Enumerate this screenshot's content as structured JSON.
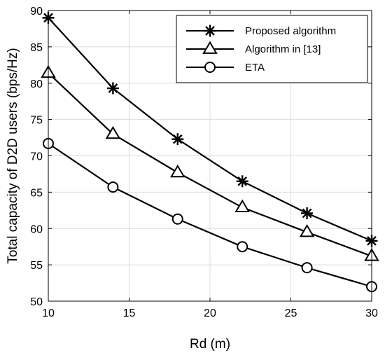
{
  "chart_data": {
    "type": "line",
    "title": "",
    "xlabel": "Rd (m)",
    "ylabel": "Total capacity of D2D users (bps/Hz)",
    "xlim": [
      10,
      30
    ],
    "ylim": [
      50,
      90
    ],
    "xticks": [
      10,
      15,
      20,
      25,
      30
    ],
    "yticks": [
      50,
      55,
      60,
      65,
      70,
      75,
      80,
      85,
      90
    ],
    "grid": true,
    "legend_position": "top-right",
    "x": [
      10,
      14,
      18,
      22,
      26,
      30
    ],
    "series": [
      {
        "name": "Proposed algorithm",
        "marker": "asterisk",
        "values": [
          89.0,
          79.3,
          72.3,
          66.5,
          62.1,
          58.3
        ]
      },
      {
        "name": "Algorithm in [13]",
        "marker": "triangle",
        "values": [
          81.4,
          73.0,
          67.7,
          62.9,
          59.5,
          56.2
        ]
      },
      {
        "name": "ETA",
        "marker": "circle",
        "values": [
          71.7,
          65.7,
          61.3,
          57.5,
          54.6,
          52.0
        ]
      }
    ],
    "colors": {
      "line": "#000000",
      "grid": "#dcdcdc",
      "background": "#ffffff"
    }
  }
}
